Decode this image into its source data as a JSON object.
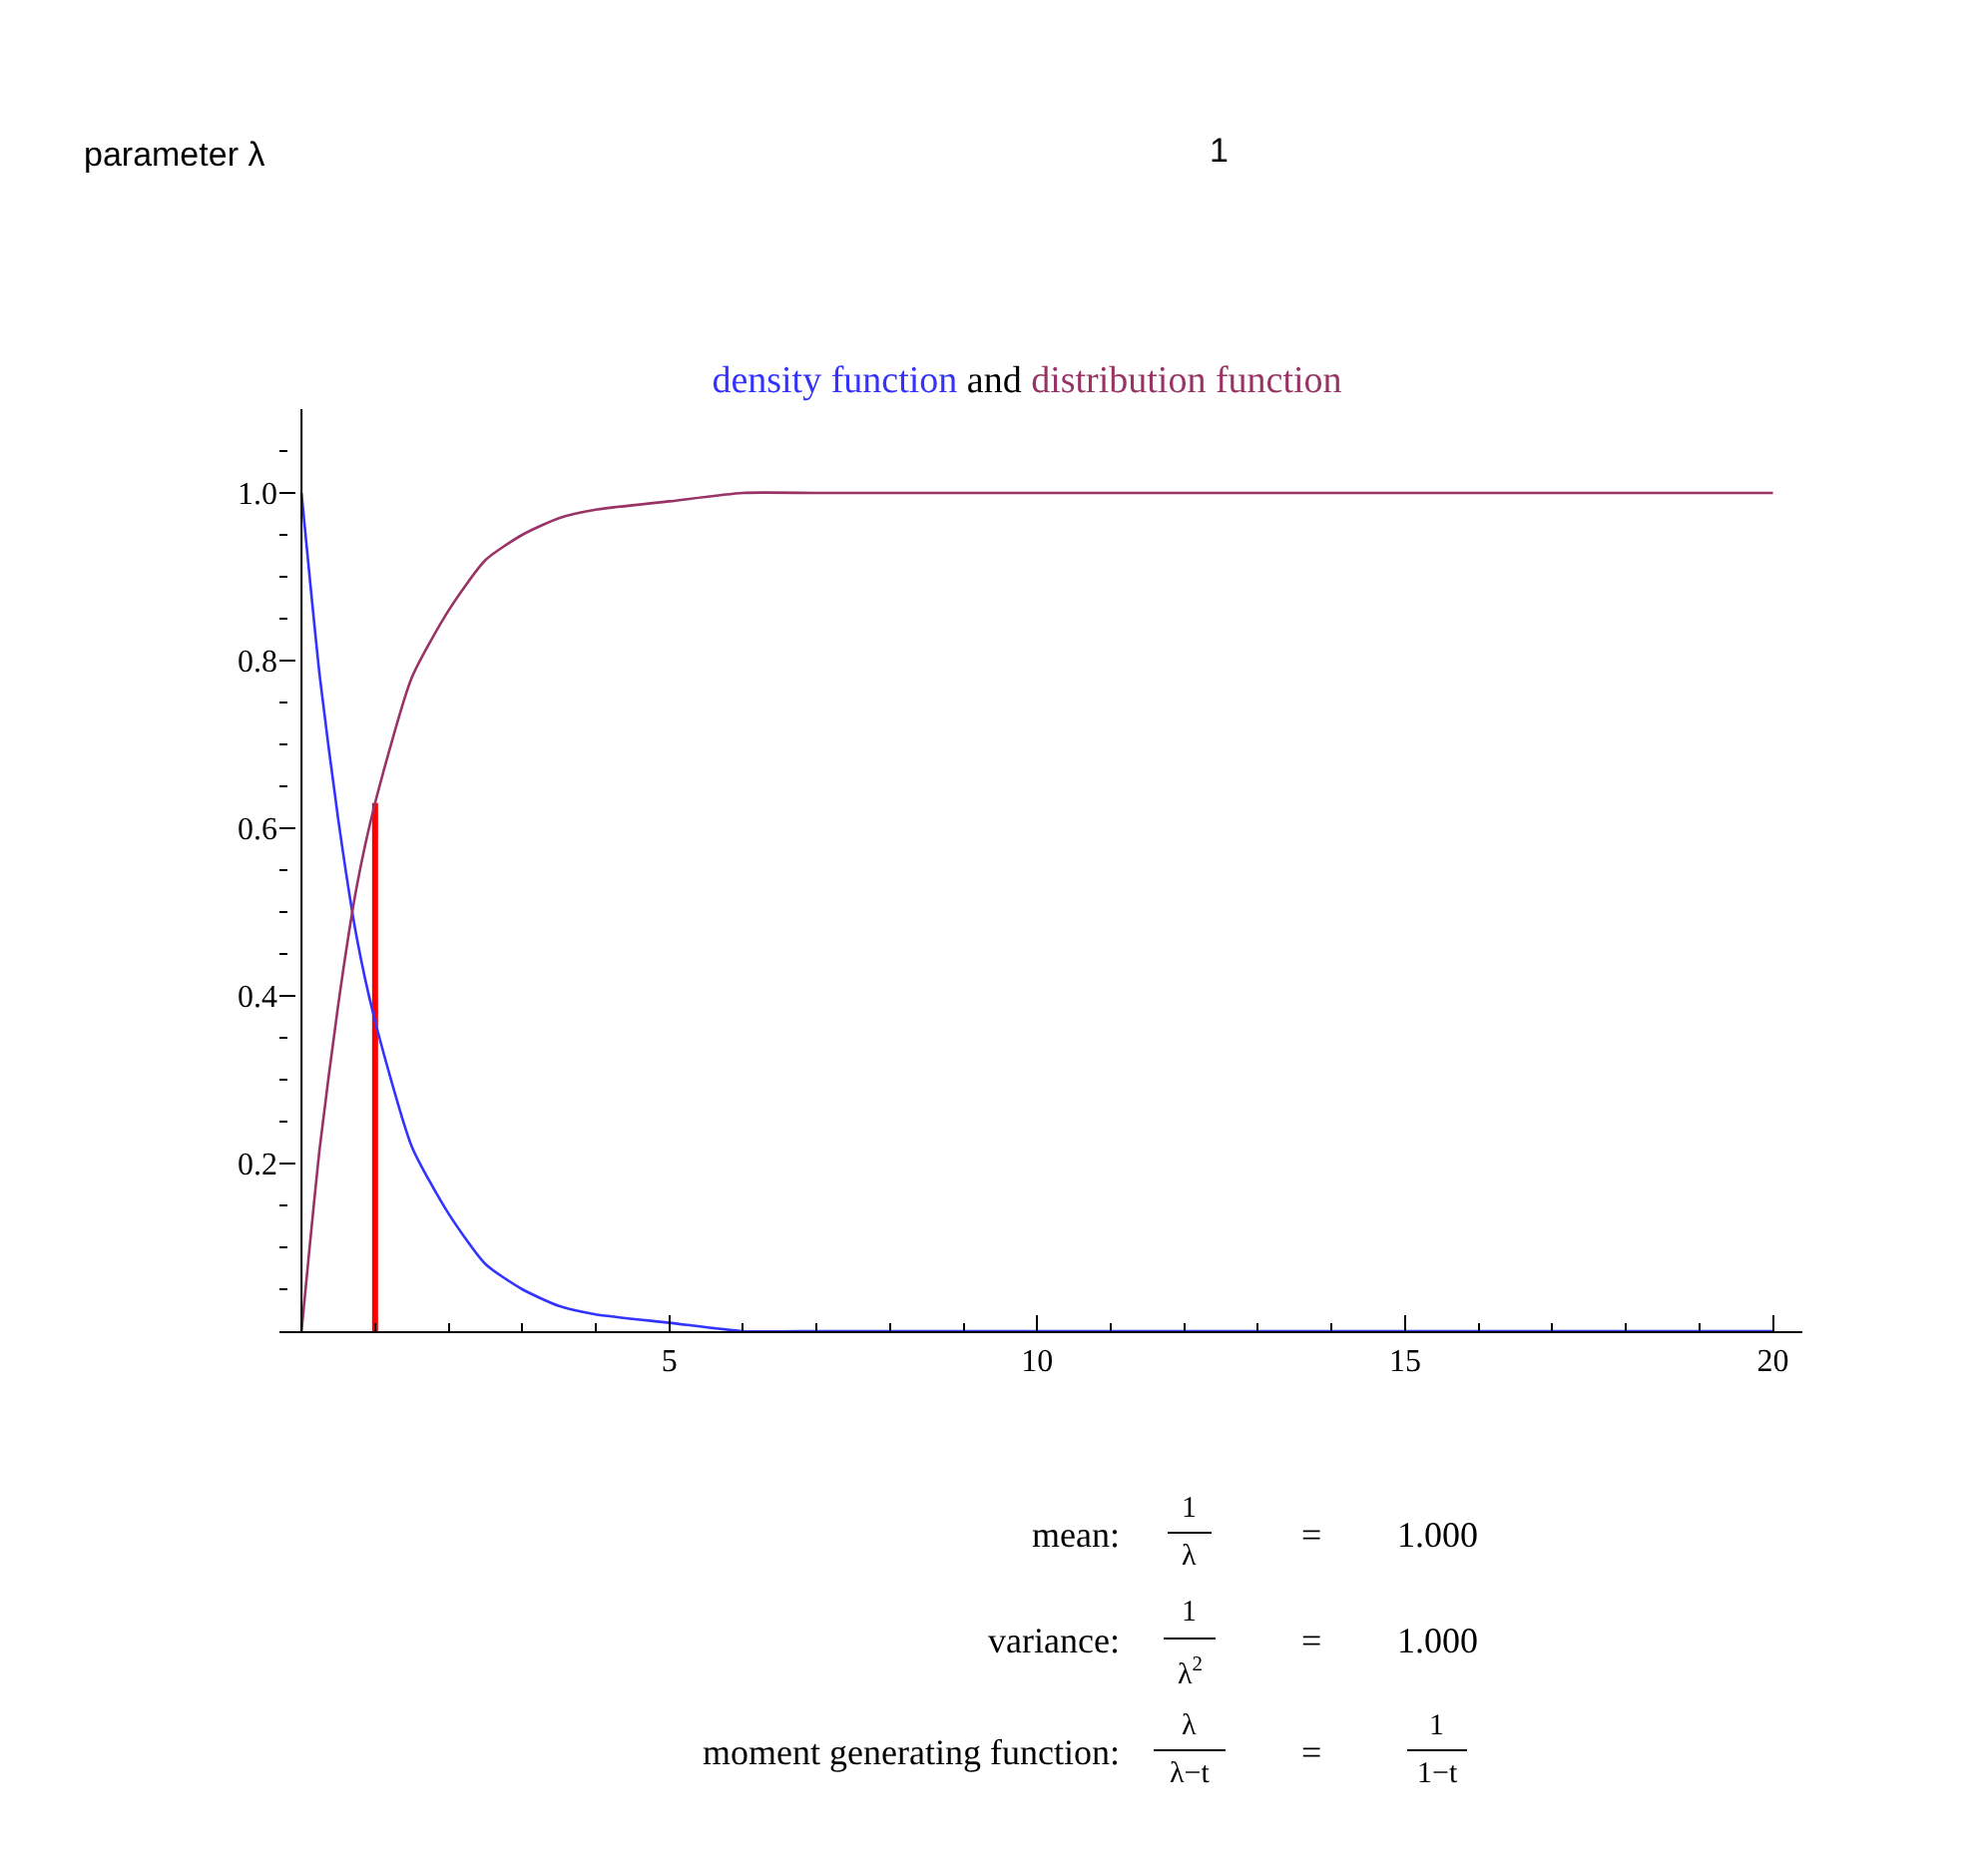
{
  "chart_data": {
    "type": "line",
    "title": "and",
    "x": [
      0,
      0.25,
      0.5,
      0.75,
      1,
      1.5,
      2,
      2.5,
      3,
      3.5,
      4,
      5,
      6,
      7,
      8,
      10,
      12,
      15,
      20
    ],
    "series": [
      {
        "type": "line",
        "color": "#ff0000",
        "x": [
          1,
          1
        ],
        "values": [
          0,
          0.63
        ]
      },
      {
        "name": "density function",
        "color": "#3333ff",
        "values": [
          1.0,
          0.78,
          0.61,
          0.47,
          0.37,
          0.22,
          0.14,
          0.08,
          0.05,
          0.03,
          0.02,
          0.01,
          0.0,
          0.0,
          0.0,
          0.0,
          0.0,
          0.0,
          0.0
        ]
      },
      {
        "name": "distribution function",
        "color": "#993366",
        "values": [
          0.0,
          0.22,
          0.39,
          0.53,
          0.63,
          0.78,
          0.86,
          0.92,
          0.95,
          0.97,
          0.98,
          0.99,
          1.0,
          1.0,
          1.0,
          1.0,
          1.0,
          1.0,
          1.0
        ]
      }
    ],
    "xlim": [
      -0.3,
      20.4
    ],
    "ylim": [
      0,
      1.1
    ],
    "xticks": [
      5,
      10,
      15,
      20
    ],
    "yticks": [
      0.2,
      0.4,
      0.6,
      0.8,
      {
        "value": 1.0,
        "label": "1.0"
      }
    ],
    "legend": false,
    "marker": "none",
    "line_style": "solid",
    "annotations": [
      "parameter λ",
      "1",
      "mean:",
      "1",
      "λ",
      "=",
      "1.000",
      "variance:",
      "1",
      "λ$^{2}$",
      "=",
      "1.000",
      "moment generating function:",
      "λ",
      "λ−t",
      "=",
      "1",
      "1−t"
    ]
  }
}
